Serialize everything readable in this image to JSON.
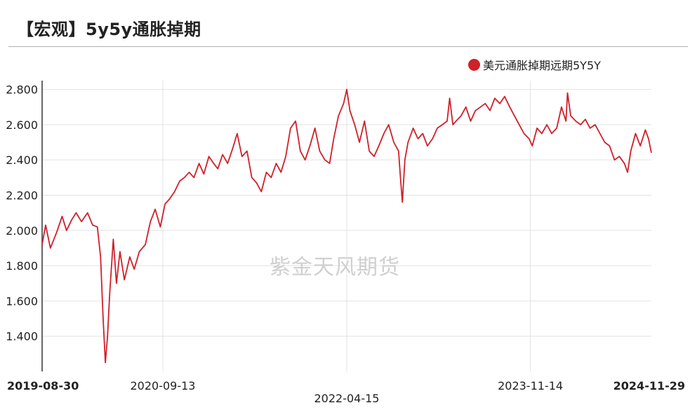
{
  "header": {
    "title": "【宏观】5y5y通胀掉期"
  },
  "watermark": "紫金天风期货",
  "chart_data": {
    "type": "line",
    "title": "【宏观】5y5y通胀掉期",
    "xlabel": "",
    "ylabel": "",
    "legend_position": "top-right",
    "grid": true,
    "ylim": [
      1.2,
      2.85
    ],
    "xlim": [
      "2019-08-30",
      "2024-11-29"
    ],
    "y_ticks": [
      "1.400",
      "1.600",
      "1.800",
      "2.000",
      "2.200",
      "2.400",
      "2.600",
      "2.800"
    ],
    "x_ticks": [
      {
        "date": "2019-08-30",
        "label": "2019-08-30",
        "bold": true
      },
      {
        "date": "2020-09-13",
        "label": "2020-09-13",
        "bold": false
      },
      {
        "date": "2022-04-15",
        "label": "2022-04-15",
        "bold": false
      },
      {
        "date": "2023-11-14",
        "label": "2023-11-14",
        "bold": false
      },
      {
        "date": "2024-11-29",
        "label": "2024-11-29",
        "bold": true
      }
    ],
    "series": [
      {
        "name": "美元通胀掉期远期5Y5Y",
        "color": "#d0202a",
        "points": [
          [
            "2019-08-30",
            1.92
          ],
          [
            "2019-09-10",
            2.03
          ],
          [
            "2019-09-25",
            1.9
          ],
          [
            "2019-10-15",
            1.99
          ],
          [
            "2019-11-01",
            2.08
          ],
          [
            "2019-11-15",
            2.0
          ],
          [
            "2019-12-01",
            2.06
          ],
          [
            "2019-12-15",
            2.1
          ],
          [
            "2020-01-01",
            2.05
          ],
          [
            "2020-01-20",
            2.1
          ],
          [
            "2020-02-05",
            2.03
          ],
          [
            "2020-02-20",
            2.02
          ],
          [
            "2020-03-01",
            1.85
          ],
          [
            "2020-03-09",
            1.5
          ],
          [
            "2020-03-16",
            1.25
          ],
          [
            "2020-03-23",
            1.4
          ],
          [
            "2020-03-30",
            1.65
          ],
          [
            "2020-04-10",
            1.95
          ],
          [
            "2020-04-20",
            1.7
          ],
          [
            "2020-05-01",
            1.88
          ],
          [
            "2020-05-15",
            1.72
          ],
          [
            "2020-06-01",
            1.85
          ],
          [
            "2020-06-15",
            1.78
          ],
          [
            "2020-07-01",
            1.88
          ],
          [
            "2020-07-20",
            1.92
          ],
          [
            "2020-08-05",
            2.05
          ],
          [
            "2020-08-20",
            2.12
          ],
          [
            "2020-09-05",
            2.02
          ],
          [
            "2020-09-20",
            2.15
          ],
          [
            "2020-10-05",
            2.18
          ],
          [
            "2020-10-20",
            2.22
          ],
          [
            "2020-11-05",
            2.28
          ],
          [
            "2020-11-20",
            2.3
          ],
          [
            "2020-12-05",
            2.33
          ],
          [
            "2020-12-20",
            2.3
          ],
          [
            "2021-01-05",
            2.38
          ],
          [
            "2021-01-20",
            2.32
          ],
          [
            "2021-02-05",
            2.42
          ],
          [
            "2021-02-20",
            2.38
          ],
          [
            "2021-03-05",
            2.35
          ],
          [
            "2021-03-20",
            2.43
          ],
          [
            "2021-04-05",
            2.38
          ],
          [
            "2021-04-20",
            2.46
          ],
          [
            "2021-05-05",
            2.55
          ],
          [
            "2021-05-20",
            2.42
          ],
          [
            "2021-06-05",
            2.45
          ],
          [
            "2021-06-20",
            2.3
          ],
          [
            "2021-07-05",
            2.27
          ],
          [
            "2021-07-20",
            2.22
          ],
          [
            "2021-08-05",
            2.33
          ],
          [
            "2021-08-20",
            2.3
          ],
          [
            "2021-09-05",
            2.38
          ],
          [
            "2021-09-20",
            2.33
          ],
          [
            "2021-10-05",
            2.42
          ],
          [
            "2021-10-20",
            2.58
          ],
          [
            "2021-11-05",
            2.62
          ],
          [
            "2021-11-20",
            2.45
          ],
          [
            "2021-12-05",
            2.4
          ],
          [
            "2021-12-20",
            2.48
          ],
          [
            "2022-01-05",
            2.58
          ],
          [
            "2022-01-20",
            2.45
          ],
          [
            "2022-02-05",
            2.4
          ],
          [
            "2022-02-20",
            2.38
          ],
          [
            "2022-03-05",
            2.52
          ],
          [
            "2022-03-20",
            2.65
          ],
          [
            "2022-04-05",
            2.72
          ],
          [
            "2022-04-15",
            2.8
          ],
          [
            "2022-04-25",
            2.68
          ],
          [
            "2022-05-10",
            2.6
          ],
          [
            "2022-05-25",
            2.5
          ],
          [
            "2022-06-10",
            2.62
          ],
          [
            "2022-06-25",
            2.45
          ],
          [
            "2022-07-10",
            2.42
          ],
          [
            "2022-07-25",
            2.48
          ],
          [
            "2022-08-10",
            2.55
          ],
          [
            "2022-08-25",
            2.6
          ],
          [
            "2022-09-10",
            2.5
          ],
          [
            "2022-09-25",
            2.45
          ],
          [
            "2022-10-01",
            2.3
          ],
          [
            "2022-10-07",
            2.16
          ],
          [
            "2022-10-15",
            2.4
          ],
          [
            "2022-10-25",
            2.5
          ],
          [
            "2022-11-10",
            2.58
          ],
          [
            "2022-11-25",
            2.52
          ],
          [
            "2022-12-10",
            2.55
          ],
          [
            "2022-12-25",
            2.48
          ],
          [
            "2023-01-10",
            2.52
          ],
          [
            "2023-01-25",
            2.58
          ],
          [
            "2023-02-10",
            2.6
          ],
          [
            "2023-02-25",
            2.62
          ],
          [
            "2023-03-05",
            2.75
          ],
          [
            "2023-03-15",
            2.6
          ],
          [
            "2023-03-25",
            2.62
          ],
          [
            "2023-04-10",
            2.65
          ],
          [
            "2023-04-25",
            2.7
          ],
          [
            "2023-05-10",
            2.62
          ],
          [
            "2023-05-25",
            2.68
          ],
          [
            "2023-06-10",
            2.7
          ],
          [
            "2023-06-25",
            2.72
          ],
          [
            "2023-07-10",
            2.68
          ],
          [
            "2023-07-25",
            2.75
          ],
          [
            "2023-08-10",
            2.72
          ],
          [
            "2023-08-25",
            2.76
          ],
          [
            "2023-09-10",
            2.7
          ],
          [
            "2023-09-25",
            2.65
          ],
          [
            "2023-10-10",
            2.6
          ],
          [
            "2023-10-25",
            2.55
          ],
          [
            "2023-11-10",
            2.52
          ],
          [
            "2023-11-20",
            2.48
          ],
          [
            "2023-12-05",
            2.58
          ],
          [
            "2023-12-20",
            2.55
          ],
          [
            "2024-01-05",
            2.6
          ],
          [
            "2024-01-20",
            2.55
          ],
          [
            "2024-02-05",
            2.58
          ],
          [
            "2024-02-20",
            2.7
          ],
          [
            "2024-03-05",
            2.62
          ],
          [
            "2024-03-10",
            2.78
          ],
          [
            "2024-03-20",
            2.65
          ],
          [
            "2024-04-05",
            2.62
          ],
          [
            "2024-04-20",
            2.6
          ],
          [
            "2024-05-05",
            2.63
          ],
          [
            "2024-05-20",
            2.58
          ],
          [
            "2024-06-05",
            2.6
          ],
          [
            "2024-06-20",
            2.55
          ],
          [
            "2024-07-05",
            2.5
          ],
          [
            "2024-07-20",
            2.48
          ],
          [
            "2024-08-05",
            2.4
          ],
          [
            "2024-08-20",
            2.42
          ],
          [
            "2024-09-05",
            2.38
          ],
          [
            "2024-09-15",
            2.33
          ],
          [
            "2024-09-25",
            2.45
          ],
          [
            "2024-10-10",
            2.55
          ],
          [
            "2024-10-25",
            2.48
          ],
          [
            "2024-11-10",
            2.57
          ],
          [
            "2024-11-20",
            2.52
          ],
          [
            "2024-11-29",
            2.44
          ]
        ]
      }
    ]
  }
}
